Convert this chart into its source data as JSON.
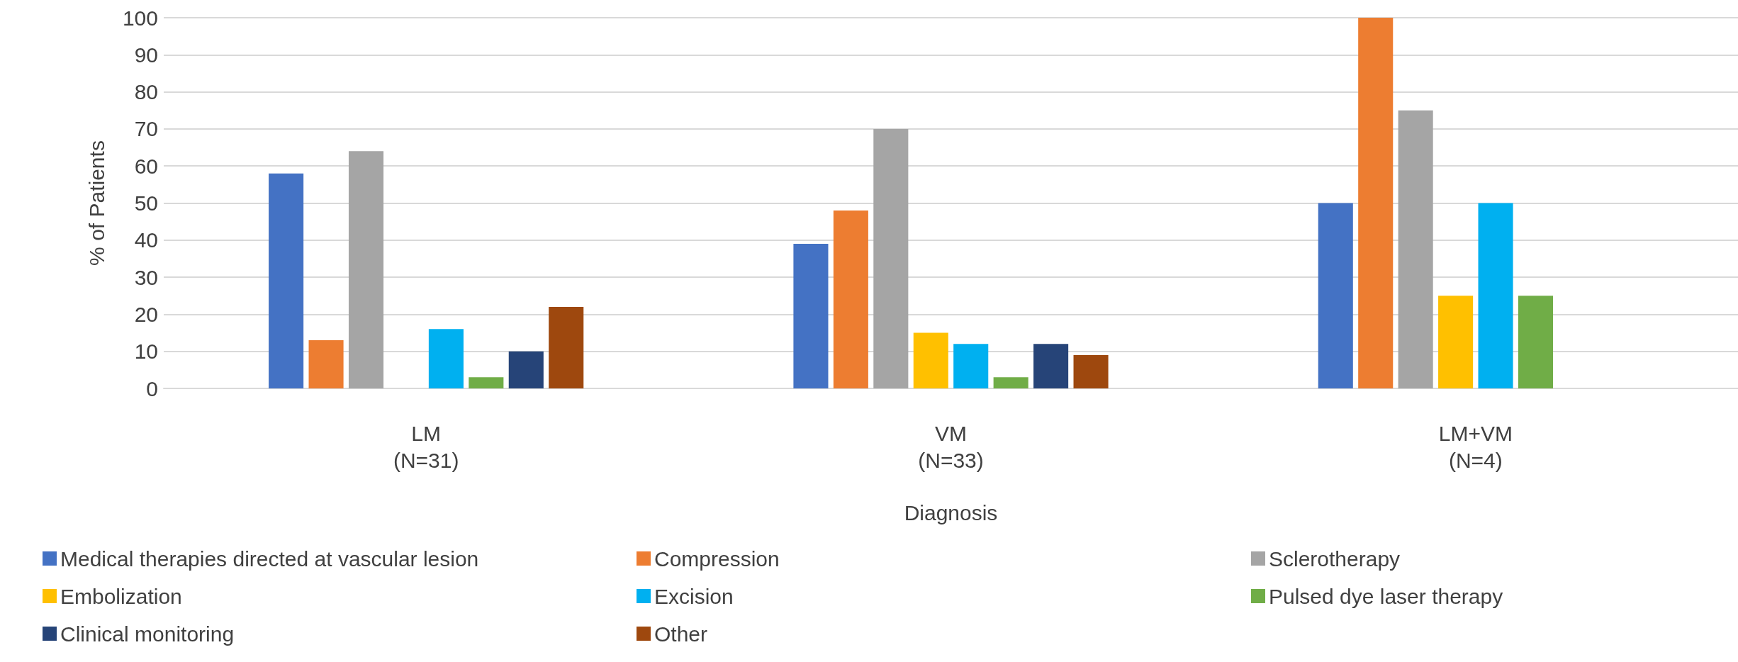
{
  "chart_data": {
    "type": "bar",
    "xlabel": "Diagnosis",
    "ylabel": "% of Patients",
    "categories": [
      "LM\n(N=31)",
      "VM\n(N=33)",
      "LM+VM\n(N=4)"
    ],
    "series": [
      {
        "name": "Medical therapies directed at vascular lesion",
        "color": "#4472c4",
        "values": [
          58,
          39,
          50
        ]
      },
      {
        "name": "Compression",
        "color": "#ed7d31",
        "values": [
          13,
          48,
          100
        ]
      },
      {
        "name": "Sclerotherapy",
        "color": "#a5a5a5",
        "values": [
          64,
          70,
          75
        ]
      },
      {
        "name": "Embolization",
        "color": "#ffc000",
        "values": [
          0,
          15,
          25
        ]
      },
      {
        "name": "Excision",
        "color": "#00b0f0",
        "values": [
          16,
          12,
          50
        ]
      },
      {
        "name": "Pulsed dye laser therapy",
        "color": "#70ad47",
        "values": [
          3,
          3,
          25
        ]
      },
      {
        "name": "Clinical monitoring",
        "color": "#264478",
        "values": [
          10,
          12,
          0
        ]
      },
      {
        "name": "Other",
        "color": "#9e480e",
        "values": [
          22,
          9,
          0
        ]
      }
    ],
    "ylim": [
      0,
      100
    ],
    "yticks": [
      0,
      10,
      20,
      30,
      40,
      50,
      60,
      70,
      80,
      90,
      100
    ],
    "grid": "y",
    "legend": "bottom"
  }
}
